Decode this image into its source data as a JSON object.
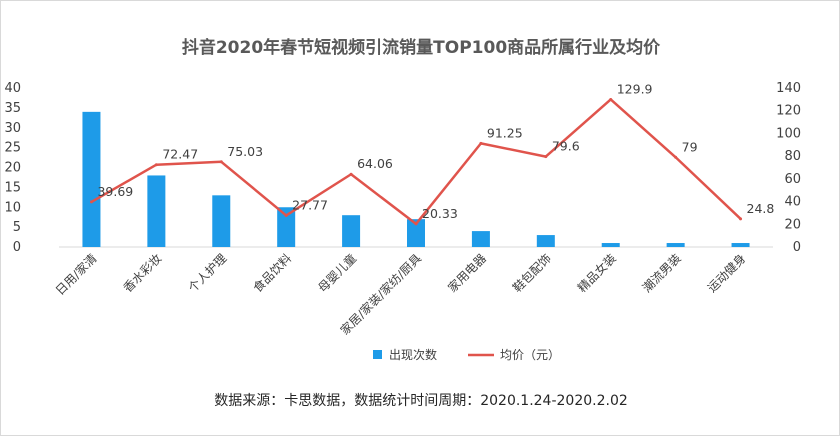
{
  "chart_data": {
    "type": "bar+line",
    "title": "抖音2020年春节短视频引流销量TOP100商品所属行业及均价",
    "categories": [
      "日用/家清",
      "香水彩妆",
      "个人护理",
      "食品饮料",
      "母婴儿童",
      "家居/家装/家纺/厨具",
      "家用电器",
      "鞋包配饰",
      "精品女装",
      "潮流男装",
      "运动健身"
    ],
    "series": [
      {
        "name": "出现次数",
        "type": "bar",
        "axis": "left",
        "color": "#1E9BE8",
        "values": [
          34,
          18,
          13,
          10,
          8,
          7,
          4,
          3,
          1,
          1,
          1
        ]
      },
      {
        "name": "均价（元）",
        "type": "line",
        "axis": "right",
        "color": "#E0544C",
        "values": [
          39.69,
          72.47,
          75.03,
          27.77,
          64.06,
          20.33,
          91.25,
          79.6,
          129.9,
          79,
          24.8
        ],
        "labels": [
          "39.69",
          "72.47",
          "75.03",
          "27.77",
          "64.06",
          "20.33",
          "91.25",
          "79.6",
          "129.9",
          "79",
          "24.8"
        ]
      }
    ],
    "left_axis": {
      "ylim": [
        0,
        40
      ],
      "ticks": [
        "0",
        "5",
        "10",
        "15",
        "20",
        "25",
        "30",
        "35",
        "40"
      ]
    },
    "right_axis": {
      "ylim": [
        0,
        140
      ],
      "ticks": [
        "0",
        "20",
        "40",
        "60",
        "80",
        "100",
        "120",
        "140"
      ]
    },
    "grid": false,
    "legend_position": "bottom"
  },
  "footer": {
    "source": "数据来源：卡思数据，数据统计时间周期：2020.1.24-2020.2.02"
  }
}
